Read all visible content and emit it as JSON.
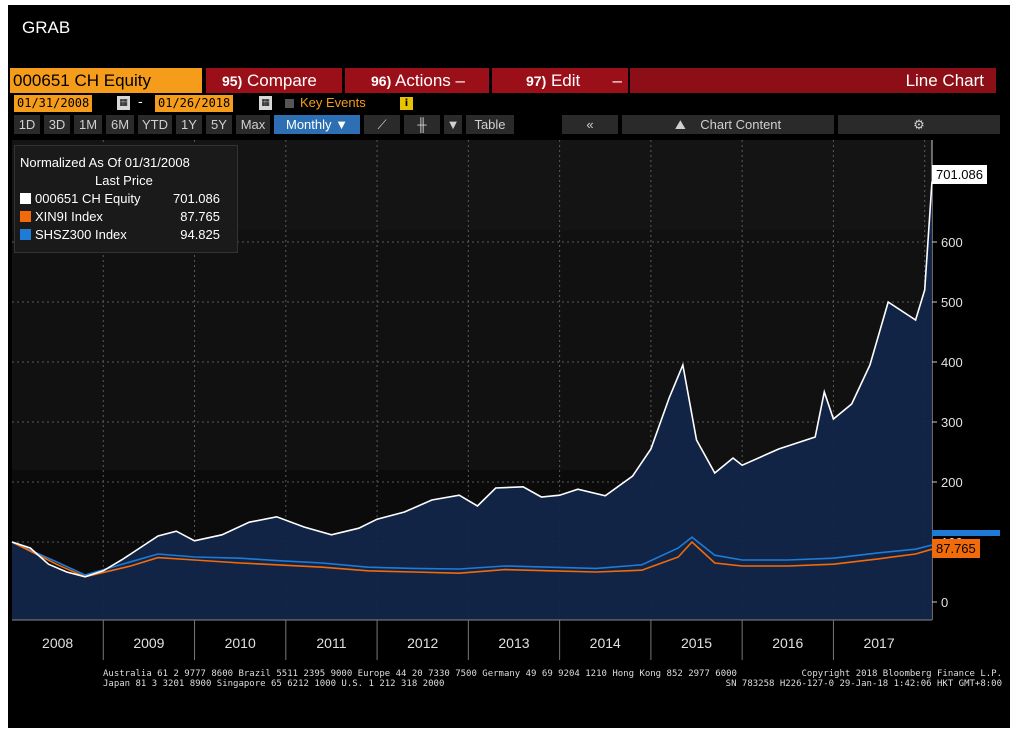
{
  "app": {
    "title": "GRAB"
  },
  "toolbar": {
    "ticker": "000651 CH Equity",
    "compare_num": "95)",
    "compare_label": "Compare",
    "actions_num": "96)",
    "actions_label": "Actions",
    "edit_num": "97)",
    "edit_label": "Edit",
    "chart_type": "Line Chart"
  },
  "range": {
    "start": "01/31/2008",
    "dash": "-",
    "end": "01/26/2018",
    "key_events": "Key Events"
  },
  "periods": [
    "1D",
    "3D",
    "1M",
    "6M",
    "YTD",
    "1Y",
    "5Y",
    "Max"
  ],
  "frequency": "Monthly ▼",
  "table_label": "Table",
  "chart_content_label": "Chart Content",
  "icons": {
    "calendar": "calendar-icon",
    "info": "info-icon",
    "line": "line-chart-icon",
    "ohlc": "ohlc-icon",
    "collapse": "collapse-icon",
    "chart_content": "chart-content-icon",
    "settings": "gear-icon"
  },
  "legend": {
    "header": "Normalized As Of 01/31/2008",
    "subheader": "Last Price",
    "items": [
      {
        "name": "000651 CH Equity",
        "value": "701.086",
        "color": "#ffffff"
      },
      {
        "name": "XIN9I Index",
        "value": "87.765",
        "color": "#f26b0a"
      },
      {
        "name": "SHSZ300 Index",
        "value": "94.825",
        "color": "#1e7bd6"
      }
    ]
  },
  "price_tags": {
    "main": "701.086",
    "xin": "87.765"
  },
  "chart_data": {
    "type": "line",
    "ylim": [
      -30,
      770
    ],
    "xlim": [
      2008.0,
      2018.08
    ],
    "y_ticks": [
      0,
      100,
      200,
      300,
      400,
      500,
      600
    ],
    "year_labels": [
      "2008",
      "2009",
      "2010",
      "2011",
      "2012",
      "2013",
      "2014",
      "2015",
      "2016",
      "2017"
    ],
    "series": [
      {
        "name": "000651 CH Equity",
        "color": "#ffffff",
        "x": [
          2008.0,
          2008.2,
          2008.4,
          2008.6,
          2008.8,
          2009.0,
          2009.2,
          2009.4,
          2009.6,
          2009.8,
          2010.0,
          2010.3,
          2010.6,
          2010.9,
          2011.2,
          2011.5,
          2011.8,
          2012.0,
          2012.3,
          2012.6,
          2012.9,
          2013.1,
          2013.3,
          2013.6,
          2013.8,
          2014.0,
          2014.2,
          2014.5,
          2014.8,
          2015.0,
          2015.2,
          2015.35,
          2015.5,
          2015.7,
          2015.9,
          2016.0,
          2016.4,
          2016.8,
          2016.9,
          2017.0,
          2017.2,
          2017.4,
          2017.6,
          2017.9,
          2018.0,
          2018.08
        ],
        "y": [
          100,
          90,
          63,
          50,
          42,
          52,
          70,
          90,
          110,
          118,
          102,
          112,
          133,
          142,
          125,
          112,
          123,
          138,
          150,
          170,
          178,
          160,
          190,
          192,
          175,
          178,
          188,
          177,
          210,
          255,
          340,
          395,
          270,
          215,
          240,
          228,
          255,
          275,
          350,
          305,
          330,
          395,
          500,
          470,
          520,
          701
        ]
      },
      {
        "name": "XIN9I Index",
        "color": "#f26b0a",
        "x": [
          2008.0,
          2008.5,
          2008.8,
          2009.3,
          2009.6,
          2010.0,
          2010.5,
          2010.9,
          2011.4,
          2011.9,
          2012.4,
          2012.9,
          2013.4,
          2013.9,
          2014.4,
          2014.9,
          2015.3,
          2015.45,
          2015.7,
          2016.0,
          2016.5,
          2017.0,
          2017.5,
          2017.9,
          2018.08
        ],
        "y": [
          100,
          62,
          42,
          60,
          74,
          70,
          65,
          62,
          58,
          52,
          50,
          48,
          54,
          52,
          50,
          53,
          75,
          100,
          65,
          60,
          60,
          63,
          72,
          80,
          88
        ]
      },
      {
        "name": "SHSZ300 Index",
        "color": "#1e7bd6",
        "x": [
          2008.0,
          2008.5,
          2008.8,
          2009.3,
          2009.6,
          2010.0,
          2010.5,
          2010.9,
          2011.4,
          2011.9,
          2012.4,
          2012.9,
          2013.4,
          2013.9,
          2014.4,
          2014.9,
          2015.3,
          2015.45,
          2015.7,
          2016.0,
          2016.5,
          2017.0,
          2017.5,
          2017.9,
          2018.08
        ],
        "y": [
          100,
          66,
          45,
          67,
          80,
          75,
          73,
          69,
          65,
          58,
          56,
          55,
          60,
          58,
          56,
          62,
          90,
          108,
          78,
          70,
          70,
          73,
          82,
          88,
          95
        ]
      }
    ]
  },
  "footer": {
    "line1": "Australia 61 2 9777 8600 Brazil 5511 2395 9000 Europe 44 20 7330 7500 Germany 49 69 9204 1210 Hong Kong 852 2977 6000",
    "line2": "Japan 81 3 3201 8900        Singapore 65 6212 1000       U.S. 1 212 318 2000",
    "line3": "Copyright 2018 Bloomberg Finance L.P.",
    "line4": "SN 783258 H226-127-0 29-Jan-18  1:42:06 HKT  GMT+8:00"
  }
}
